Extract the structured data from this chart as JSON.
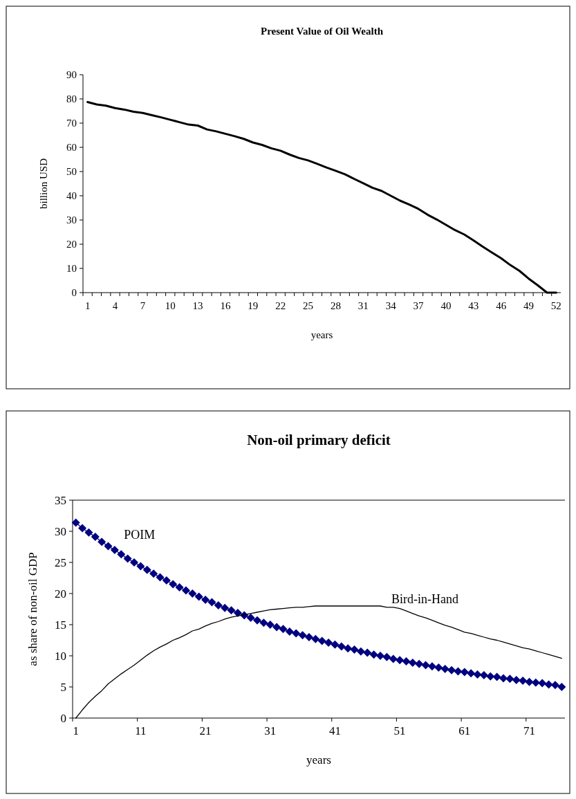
{
  "chart_data": [
    {
      "type": "line",
      "title": "Present Value of Oil Wealth",
      "xlabel": "years",
      "ylabel": "billion USD",
      "categories": [
        "1",
        null,
        null,
        "4",
        null,
        null,
        "7",
        null,
        null,
        "10",
        null,
        null,
        "13",
        null,
        null,
        "16",
        null,
        null,
        "19",
        null,
        null,
        "22",
        null,
        null,
        "25",
        null,
        null,
        "28",
        null,
        null,
        "31",
        null,
        null,
        "34",
        null,
        null,
        "37",
        null,
        null,
        "40",
        null,
        null,
        "43",
        null,
        null,
        "46",
        null,
        null,
        "49",
        null,
        null,
        "52"
      ],
      "series": [
        {
          "color": "#000000",
          "marker": "none",
          "values": [
            78.7,
            77.7,
            77.2,
            76.2,
            75.6,
            74.7,
            74.2,
            73.3,
            72.4,
            71.4,
            70.4,
            69.4,
            69.0,
            67.4,
            66.6,
            65.6,
            64.6,
            63.5,
            62.0,
            61.0,
            59.6,
            58.6,
            57.0,
            55.6,
            54.6,
            53.2,
            51.7,
            50.3,
            48.9,
            47.0,
            45.2,
            43.3,
            42.0,
            40.0,
            38.0,
            36.4,
            34.6,
            32.2,
            30.2,
            28.0,
            25.8,
            24.0,
            21.6,
            19.0,
            16.6,
            14.2,
            11.4,
            9.0,
            5.8,
            3.0,
            0,
            0
          ]
        }
      ],
      "ylim": [
        0,
        90
      ],
      "yticks": [
        0,
        10,
        20,
        30,
        40,
        50,
        60,
        70,
        80,
        90
      ],
      "grid": false
    },
    {
      "type": "line",
      "title": "Non-oil primary deficit",
      "xlabel": "years",
      "ylabel": "as share of non-oil GDP",
      "categories": [
        "1",
        null,
        null,
        null,
        null,
        null,
        null,
        null,
        null,
        null,
        "11",
        null,
        null,
        null,
        null,
        null,
        null,
        null,
        null,
        null,
        "21",
        null,
        null,
        null,
        null,
        null,
        null,
        null,
        null,
        null,
        "31",
        null,
        null,
        null,
        null,
        null,
        null,
        null,
        null,
        null,
        "41",
        null,
        null,
        null,
        null,
        null,
        null,
        null,
        null,
        null,
        "51",
        null,
        null,
        null,
        null,
        null,
        null,
        null,
        null,
        null,
        "61",
        null,
        null,
        null,
        null,
        null,
        null,
        null,
        null,
        null,
        "71",
        null,
        null,
        null,
        null,
        null
      ],
      "series": [
        {
          "name": "POIM",
          "color": "#000080",
          "marker": "diamond",
          "values": [
            31.4,
            30.5,
            29.8,
            29.1,
            28.3,
            27.6,
            27.0,
            26.3,
            25.6,
            25.0,
            24.4,
            23.8,
            23.2,
            22.6,
            22.1,
            21.5,
            21.0,
            20.5,
            20.0,
            19.5,
            19.0,
            18.6,
            18.1,
            17.7,
            17.3,
            16.9,
            16.5,
            16.1,
            15.7,
            15.3,
            15.0,
            14.6,
            14.3,
            13.9,
            13.6,
            13.3,
            13.0,
            12.7,
            12.4,
            12.1,
            11.8,
            11.5,
            11.2,
            11.0,
            10.7,
            10.5,
            10.2,
            10.0,
            9.8,
            9.5,
            9.3,
            9.1,
            8.9,
            8.7,
            8.5,
            8.3,
            8.1,
            7.9,
            7.7,
            7.5,
            7.4,
            7.2,
            7.0,
            6.9,
            6.7,
            6.6,
            6.4,
            6.3,
            6.1,
            6.0,
            5.8,
            5.7,
            5.6,
            5.4,
            5.3,
            5.0
          ]
        },
        {
          "name": "Bird-in-Hand",
          "color": "#000000",
          "marker": "none",
          "values": [
            0,
            1.3,
            2.5,
            3.5,
            4.4,
            5.5,
            6.3,
            7.1,
            7.8,
            8.5,
            9.3,
            10.1,
            10.8,
            11.4,
            11.9,
            12.5,
            12.9,
            13.4,
            14.0,
            14.3,
            14.8,
            15.2,
            15.5,
            15.9,
            16.2,
            16.4,
            16.6,
            16.8,
            17.0,
            17.2,
            17.4,
            17.5,
            17.6,
            17.7,
            17.8,
            17.8,
            17.9,
            18.0,
            18.0,
            18.0,
            18.0,
            18.0,
            18.0,
            18.0,
            18.0,
            18.0,
            18.0,
            18.0,
            17.8,
            17.8,
            17.6,
            17.2,
            16.8,
            16.4,
            16.1,
            15.7,
            15.3,
            14.9,
            14.6,
            14.2,
            13.8,
            13.6,
            13.3,
            13.0,
            12.7,
            12.5,
            12.2,
            11.9,
            11.6,
            11.3,
            11.1,
            10.8,
            10.5,
            10.2,
            9.9,
            9.6
          ]
        }
      ],
      "ylim": [
        0,
        35
      ],
      "yticks": [
        0,
        5,
        10,
        15,
        20,
        25,
        30,
        35
      ],
      "grid": false
    }
  ]
}
